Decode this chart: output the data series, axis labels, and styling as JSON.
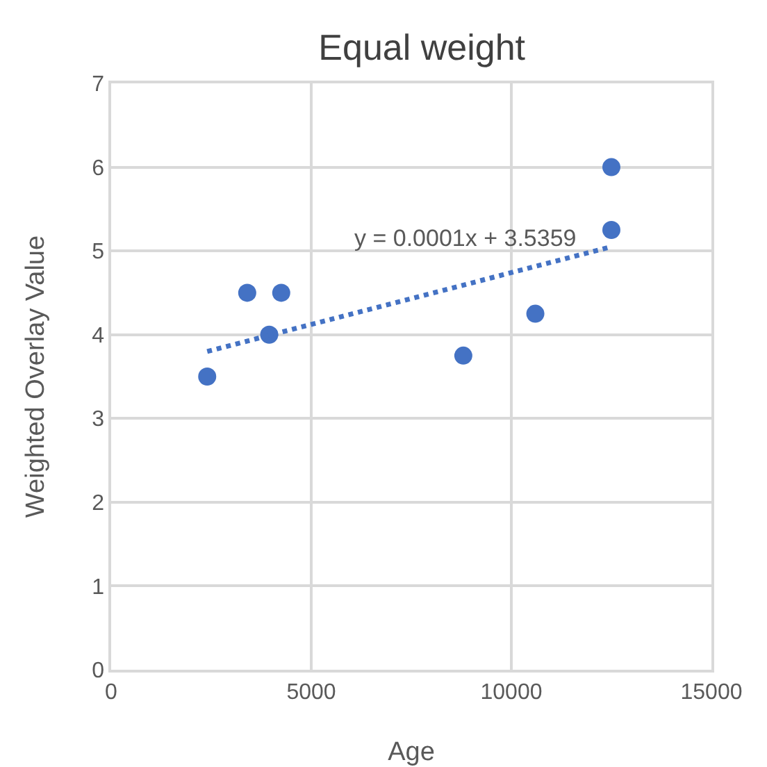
{
  "chart_data": {
    "type": "scatter",
    "title": "Equal weight",
    "xlabel": "Age",
    "ylabel": "Weighted Overlay Value",
    "xlim": [
      0,
      15000
    ],
    "xticks": [
      0,
      5000,
      10000,
      15000
    ],
    "ylim": [
      0,
      7
    ],
    "yticks": [
      0,
      1,
      2,
      3,
      4,
      5,
      6,
      7
    ],
    "grid": true,
    "series": [
      {
        "color": "#4472c4",
        "marker": "circle",
        "x": [
          2400,
          3400,
          4250,
          3950,
          8800,
          10600,
          12500,
          12500
        ],
        "values": [
          3.5,
          4.5,
          4.5,
          4.0,
          3.75,
          4.25,
          5.25,
          6.0
        ]
      },
      {
        "type": "line",
        "marker": "none",
        "line_style": "dotted",
        "color": "#4472c4",
        "x": [
          2400,
          12500
        ],
        "values": [
          3.8,
          5.05
        ]
      }
    ],
    "annotations": [
      "y = 0.0001x + 3.5359"
    ]
  }
}
